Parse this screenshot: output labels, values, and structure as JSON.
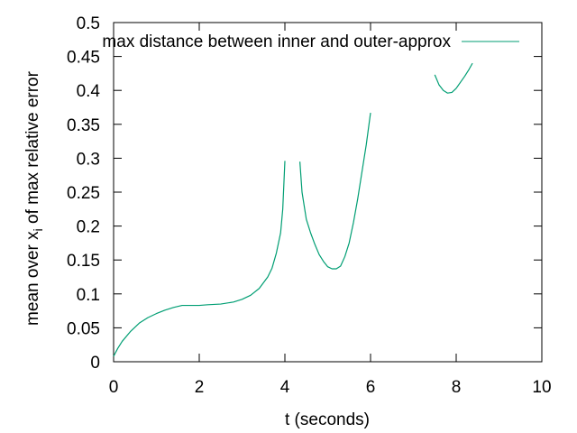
{
  "chart_data": {
    "type": "line",
    "title": "",
    "xlabel": "t (seconds)",
    "ylabel": {
      "text_before_subscript": "mean over x",
      "subscript": "i",
      "text_after_subscript": " of max relative error"
    },
    "xlim": [
      0,
      10
    ],
    "ylim": [
      0,
      0.5
    ],
    "x_ticks": [
      0,
      2,
      4,
      6,
      8,
      10
    ],
    "x_tick_labels": [
      "0",
      "2",
      "4",
      "6",
      "8",
      "10"
    ],
    "y_ticks": [
      0,
      0.05,
      0.1,
      0.15,
      0.2,
      0.25,
      0.3,
      0.35,
      0.4,
      0.45,
      0.5
    ],
    "y_tick_labels": [
      "0",
      "0.05",
      "0.1",
      "0.15",
      "0.2",
      "0.25",
      "0.3",
      "0.35",
      "0.4",
      "0.45",
      "0.5"
    ],
    "grid": false,
    "legend": "top-right",
    "series": [
      {
        "name": "max distance between inner and outer-approx",
        "color": "#009e73",
        "segments": [
          [
            [
              0.0,
              0.008
            ],
            [
              0.1,
              0.02
            ],
            [
              0.2,
              0.03
            ],
            [
              0.4,
              0.045
            ],
            [
              0.6,
              0.057
            ],
            [
              0.8,
              0.065
            ],
            [
              1.0,
              0.071
            ],
            [
              1.2,
              0.076
            ],
            [
              1.4,
              0.08
            ],
            [
              1.6,
              0.083
            ],
            [
              1.8,
              0.083
            ],
            [
              2.0,
              0.083
            ],
            [
              2.2,
              0.084
            ],
            [
              2.5,
              0.085
            ],
            [
              2.8,
              0.088
            ],
            [
              3.0,
              0.092
            ],
            [
              3.2,
              0.098
            ],
            [
              3.4,
              0.108
            ],
            [
              3.6,
              0.125
            ],
            [
              3.7,
              0.138
            ],
            [
              3.8,
              0.16
            ],
            [
              3.9,
              0.19
            ],
            [
              3.95,
              0.225
            ],
            [
              4.0,
              0.296
            ]
          ],
          [
            [
              4.35,
              0.295
            ],
            [
              4.4,
              0.25
            ],
            [
              4.5,
              0.21
            ],
            [
              4.6,
              0.19
            ],
            [
              4.7,
              0.173
            ],
            [
              4.8,
              0.158
            ],
            [
              4.9,
              0.148
            ],
            [
              5.0,
              0.14
            ],
            [
              5.1,
              0.137
            ],
            [
              5.2,
              0.137
            ],
            [
              5.3,
              0.141
            ],
            [
              5.4,
              0.155
            ],
            [
              5.5,
              0.175
            ],
            [
              5.6,
              0.205
            ],
            [
              5.7,
              0.24
            ],
            [
              5.8,
              0.28
            ],
            [
              5.9,
              0.32
            ],
            [
              6.0,
              0.367
            ]
          ],
          [
            [
              7.5,
              0.423
            ],
            [
              7.6,
              0.408
            ],
            [
              7.7,
              0.4
            ],
            [
              7.8,
              0.396
            ],
            [
              7.9,
              0.397
            ],
            [
              8.0,
              0.403
            ],
            [
              8.1,
              0.412
            ],
            [
              8.2,
              0.421
            ],
            [
              8.3,
              0.431
            ],
            [
              8.38,
              0.44
            ]
          ]
        ]
      }
    ]
  }
}
